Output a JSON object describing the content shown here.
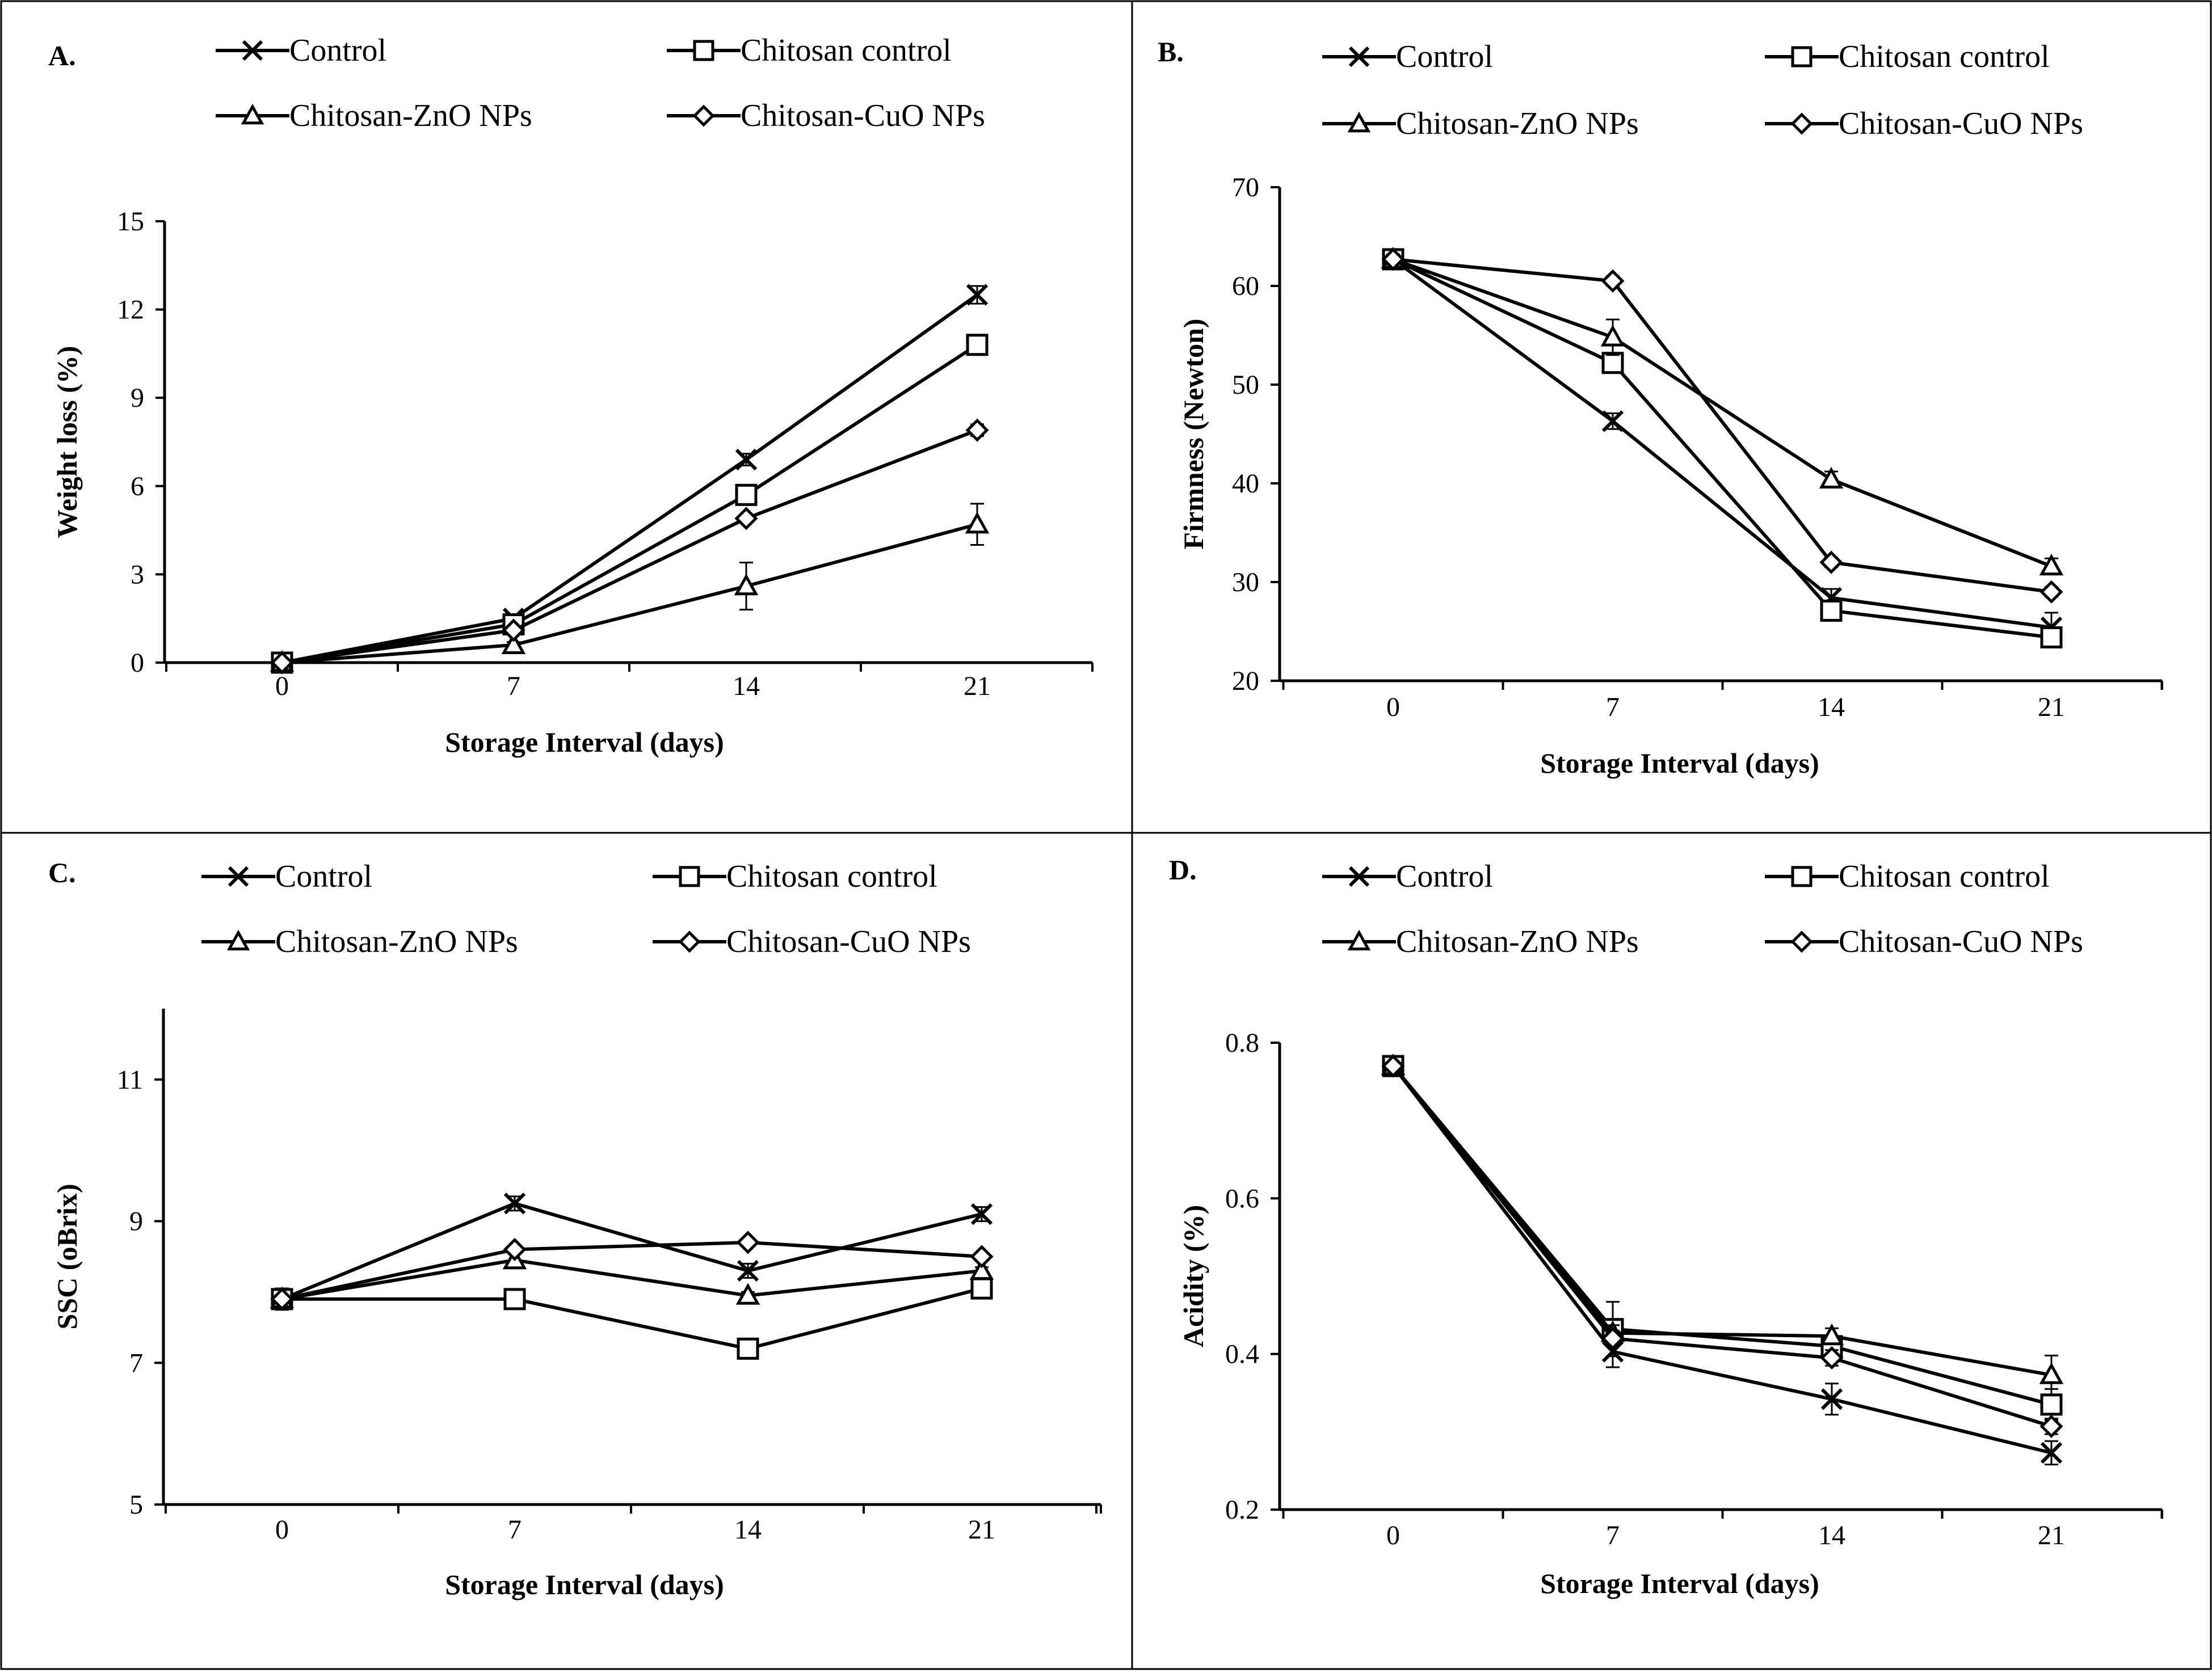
{
  "figure": {
    "panels": [
      "A",
      "B",
      "C",
      "D"
    ]
  },
  "legend": {
    "series": [
      "Control",
      "Chitosan control",
      "Chitosan-ZnO NPs",
      "Chitosan-CuO NPs"
    ],
    "markers": [
      "x-marker-icon",
      "square-marker-icon",
      "triangle-marker-icon",
      "diamond-marker-icon"
    ]
  },
  "chart_data": [
    {
      "panel_label": "A.",
      "type": "line",
      "title": "",
      "xlabel": "Storage Interval (days)",
      "ylabel": "Weight loss (%)",
      "categories": [
        "0",
        "7",
        "14",
        "21"
      ],
      "ylim": [
        0,
        15
      ],
      "yticks": [
        0,
        3,
        6,
        9,
        12,
        15
      ],
      "grid": false,
      "legend_position": "top",
      "series": [
        {
          "name": "Control",
          "values": [
            0,
            1.5,
            6.9,
            12.5
          ],
          "errors": [
            0.1,
            0.1,
            0.2,
            0.3
          ]
        },
        {
          "name": "Chitosan control",
          "values": [
            0,
            1.3,
            5.7,
            10.8
          ],
          "errors": [
            0.1,
            0.1,
            0.2,
            0.3
          ]
        },
        {
          "name": "Chitosan-ZnO NPs",
          "values": [
            0,
            0.6,
            2.6,
            4.7
          ],
          "errors": [
            0.1,
            0.1,
            0.8,
            0.7
          ]
        },
        {
          "name": "Chitosan-CuO NPs",
          "values": [
            0,
            1.1,
            4.9,
            7.9
          ],
          "errors": [
            0.1,
            0.1,
            0.1,
            0.2
          ]
        }
      ]
    },
    {
      "panel_label": "B.",
      "type": "line",
      "title": "",
      "xlabel": "Storage Interval (days)",
      "ylabel": "Firmness (Newton)",
      "categories": [
        "0",
        "7",
        "14",
        "21"
      ],
      "ylim": [
        20,
        70
      ],
      "yticks": [
        20,
        30,
        40,
        50,
        60,
        70
      ],
      "grid": false,
      "legend_position": "top",
      "series": [
        {
          "name": "Control",
          "values": [
            62.7,
            46.3,
            28.4,
            25.4
          ],
          "errors": [
            0.5,
            0.8,
            0.9,
            1.5
          ]
        },
        {
          "name": "Chitosan control",
          "values": [
            62.7,
            52.2,
            27.1,
            24.4
          ],
          "errors": [
            0.5,
            1.0,
            0.8,
            0.8
          ]
        },
        {
          "name": "Chitosan-ZnO NPs",
          "values": [
            62.7,
            54.8,
            40.4,
            31.6
          ],
          "errors": [
            0.5,
            1.8,
            0.8,
            0.8
          ]
        },
        {
          "name": "Chitosan-CuO NPs",
          "values": [
            62.7,
            60.5,
            32.0,
            29.0
          ],
          "errors": [
            0.5,
            0.5,
            0.5,
            0.5
          ]
        }
      ]
    },
    {
      "panel_label": "C.",
      "type": "line",
      "title": "",
      "xlabel": "Storage Interval (days)",
      "ylabel": "SSC (oBrix)",
      "categories": [
        "0",
        "7",
        "14",
        "21"
      ],
      "ylim": [
        5,
        12
      ],
      "yticks": [
        5,
        7,
        9,
        11
      ],
      "grid": false,
      "legend_position": "top",
      "series": [
        {
          "name": "Control",
          "values": [
            7.9,
            9.25,
            8.3,
            9.1
          ],
          "errors": [
            0.15,
            0.1,
            0.1,
            0.1
          ]
        },
        {
          "name": "Chitosan control",
          "values": [
            7.9,
            7.9,
            7.2,
            8.05
          ],
          "errors": [
            0.15,
            0.1,
            0.1,
            0.1
          ]
        },
        {
          "name": "Chitosan-ZnO NPs",
          "values": [
            7.9,
            8.45,
            7.95,
            8.3
          ],
          "errors": [
            0.15,
            0.1,
            0.05,
            0.05
          ]
        },
        {
          "name": "Chitosan-CuO NPs",
          "values": [
            7.9,
            8.6,
            8.7,
            8.5
          ],
          "errors": [
            0.15,
            0.05,
            0.05,
            0.05
          ]
        }
      ]
    },
    {
      "panel_label": "D.",
      "type": "line",
      "title": "",
      "xlabel": "Storage Interval (days)",
      "ylabel": "Acidity  (%)",
      "categories": [
        "0",
        "7",
        "14",
        "21"
      ],
      "ylim": [
        0.2,
        0.8
      ],
      "yticks": [
        0.2,
        0.4,
        0.6,
        0.8
      ],
      "ytick_labels": [
        "0.2",
        "0.4",
        "0.6",
        "0.8"
      ],
      "grid": false,
      "legend_position": "top",
      "series": [
        {
          "name": "Control",
          "values": [
            0.77,
            0.403,
            0.342,
            0.273
          ],
          "errors": [
            0.005,
            0.02,
            0.02,
            0.015
          ]
        },
        {
          "name": "Chitosan control",
          "values": [
            0.77,
            0.432,
            0.41,
            0.335
          ],
          "errors": [
            0.005,
            0.035,
            0.01,
            0.02
          ]
        },
        {
          "name": "Chitosan-ZnO NPs",
          "values": [
            0.77,
            0.427,
            0.423,
            0.373
          ],
          "errors": [
            0.005,
            0.01,
            0.01,
            0.025
          ]
        },
        {
          "name": "Chitosan-CuO NPs",
          "values": [
            0.77,
            0.42,
            0.395,
            0.307
          ],
          "errors": [
            0.005,
            0.01,
            0.01,
            0.01
          ]
        }
      ]
    }
  ]
}
